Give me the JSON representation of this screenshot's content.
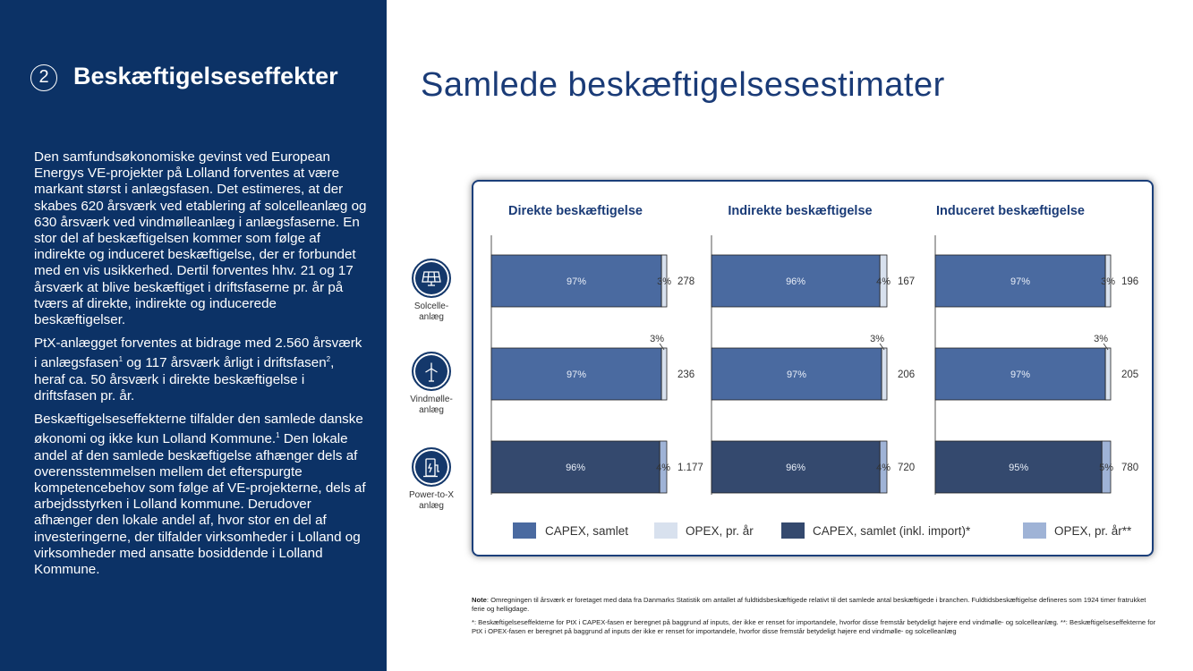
{
  "sidebar": {
    "section_number": "2",
    "section_title": "Beskæftigelseseffekter",
    "paragraphs": [
      [
        "Den samfundsøkonomiske gevinst ved European Energys VE-projekter på Lolland forventes at være markant størst i anlægsfasen. Det estimeres, at der skabes 620 årsværk ved etablering af solcelleanlæg og 630 årsværk ved vindmølleanlæg i anlægsfaserne. En stor del af beskæftigelsen kommer som følge af indirekte og induceret beskæftigelse, der er forbundet med en vis usikkerhed. Dertil forventes hhv. 21 og 17 årsværk at blive beskæftiget i driftsfaserne pr. år på tværs af direkte, indirekte og inducerede beskæftigelser."
      ],
      [
        "PtX-anlægget forventes at bidrage med 2.560 årsværk i anlægsfasen",
        "1",
        " og 117 årsværk årligt i driftsfasen",
        "2",
        ", heraf ca. 50 årsværk i direkte beskæftigelse i driftsfasen pr. år."
      ],
      [
        "Beskæftigelseseffekterne tilfalder den samlede danske økonomi og ikke kun Lolland Kommune.",
        "1",
        " Den lokale andel af den samlede beskæftigelse afhænger dels af overensstemmelsen mellem det efterspurgte kompetencebehov som følge af VE-projekterne, dels af arbejdsstyrken i Lolland kommune. Derudover afhænger den lokale andel af, hvor stor en del af investeringerne, der tilfalder virksomheder i Lolland og virksomheder med ansatte bosiddende i Lolland Kommune."
      ]
    ]
  },
  "main_title": "Samlede beskæftigelsesestimater",
  "row_icons": [
    {
      "icon": "solar-panel-icon",
      "label_lines": [
        "Solcelle-",
        "anlæg"
      ]
    },
    {
      "icon": "wind-turbine-icon",
      "label_lines": [
        "Vindmølle-",
        "anlæg"
      ]
    },
    {
      "icon": "power-to-x-icon",
      "label_lines": [
        "Power-to-X",
        "anlæg"
      ]
    }
  ],
  "chart_data": {
    "type": "bar",
    "orientation": "horizontal",
    "stacked": true,
    "rows": [
      "Solcelleanlæg",
      "Vindmølleanlæg",
      "Power-to-X anlæg"
    ],
    "panels": [
      {
        "title": "Direkte beskæftigelse",
        "totals": [
          278,
          236,
          1177
        ],
        "total_labels": [
          "278",
          "236",
          "1.177"
        ],
        "capex_pct": [
          "97%",
          "97%",
          "96%"
        ],
        "opex_pct": [
          "3%",
          "3%",
          "4%"
        ],
        "capex_share": [
          97,
          97,
          96
        ],
        "opex_share": [
          3,
          3,
          4
        ],
        "opex_label_outside": [
          false,
          true,
          false
        ],
        "series_type": [
          "plain",
          "plain",
          "import"
        ]
      },
      {
        "title": "Indirekte beskæftigelse",
        "totals": [
          167,
          206,
          720
        ],
        "total_labels": [
          "167",
          "206",
          "720"
        ],
        "capex_pct": [
          "96%",
          "97%",
          "96%"
        ],
        "opex_pct": [
          "4%",
          "3%",
          "4%"
        ],
        "capex_share": [
          96,
          97,
          96
        ],
        "opex_share": [
          4,
          3,
          4
        ],
        "opex_label_outside": [
          false,
          true,
          false
        ],
        "series_type": [
          "plain",
          "plain",
          "import"
        ]
      },
      {
        "title": "Induceret beskæftigelse",
        "totals": [
          196,
          205,
          780
        ],
        "total_labels": [
          "196",
          "205",
          "780"
        ],
        "capex_pct": [
          "97%",
          "97%",
          "95%"
        ],
        "opex_pct": [
          "3%",
          "3%",
          "5%"
        ],
        "capex_share": [
          97,
          97,
          95
        ],
        "opex_share": [
          3,
          3,
          5
        ],
        "opex_label_outside": [
          false,
          true,
          false
        ],
        "series_type": [
          "plain",
          "plain",
          "import"
        ]
      }
    ],
    "legend": [
      {
        "label": "CAPEX, samlet",
        "color": "#4a6aa0"
      },
      {
        "label": "OPEX, pr. år",
        "color": "#d8e1ee"
      },
      {
        "label": "CAPEX, samlet (inkl. import)*",
        "color": "#34496e"
      },
      {
        "label": "OPEX, pr. år**",
        "color": "#9fb3d6"
      }
    ],
    "colors": {
      "capex": "#4a6aa0",
      "opex": "#d8e1ee",
      "capex_import": "#34496e",
      "opex_import": "#9fb3d6",
      "title": "#1a3b77"
    }
  },
  "notes": {
    "note_label": "Note",
    "note_text": ": Omregningen til årsværk er foretaget med data fra Danmarks Statistik om antallet af fuldtidsbeskæftigede relativt til det samlede antal beskæftigede i branchen. Fuldtidsbeskæftigelse defineres som 1924 timer fratrukket ferie og helligdage.",
    "footnote_1": "*: Beskæftigelseseffekterne for PtX i CAPEX-fasen er beregnet på baggrund af inputs, der ikke er renset for importandele, hvorfor disse fremstår betydeligt højere end vindmølle- og solcelleanlæg. **: Beskæftigelseseffekterne for PtX i OPEX-fasen er beregnet på baggrund af inputs der ikke er renset for importandele, hvorfor disse fremstår betydeligt højere end vindmølle- og solcelleanlæg"
  }
}
